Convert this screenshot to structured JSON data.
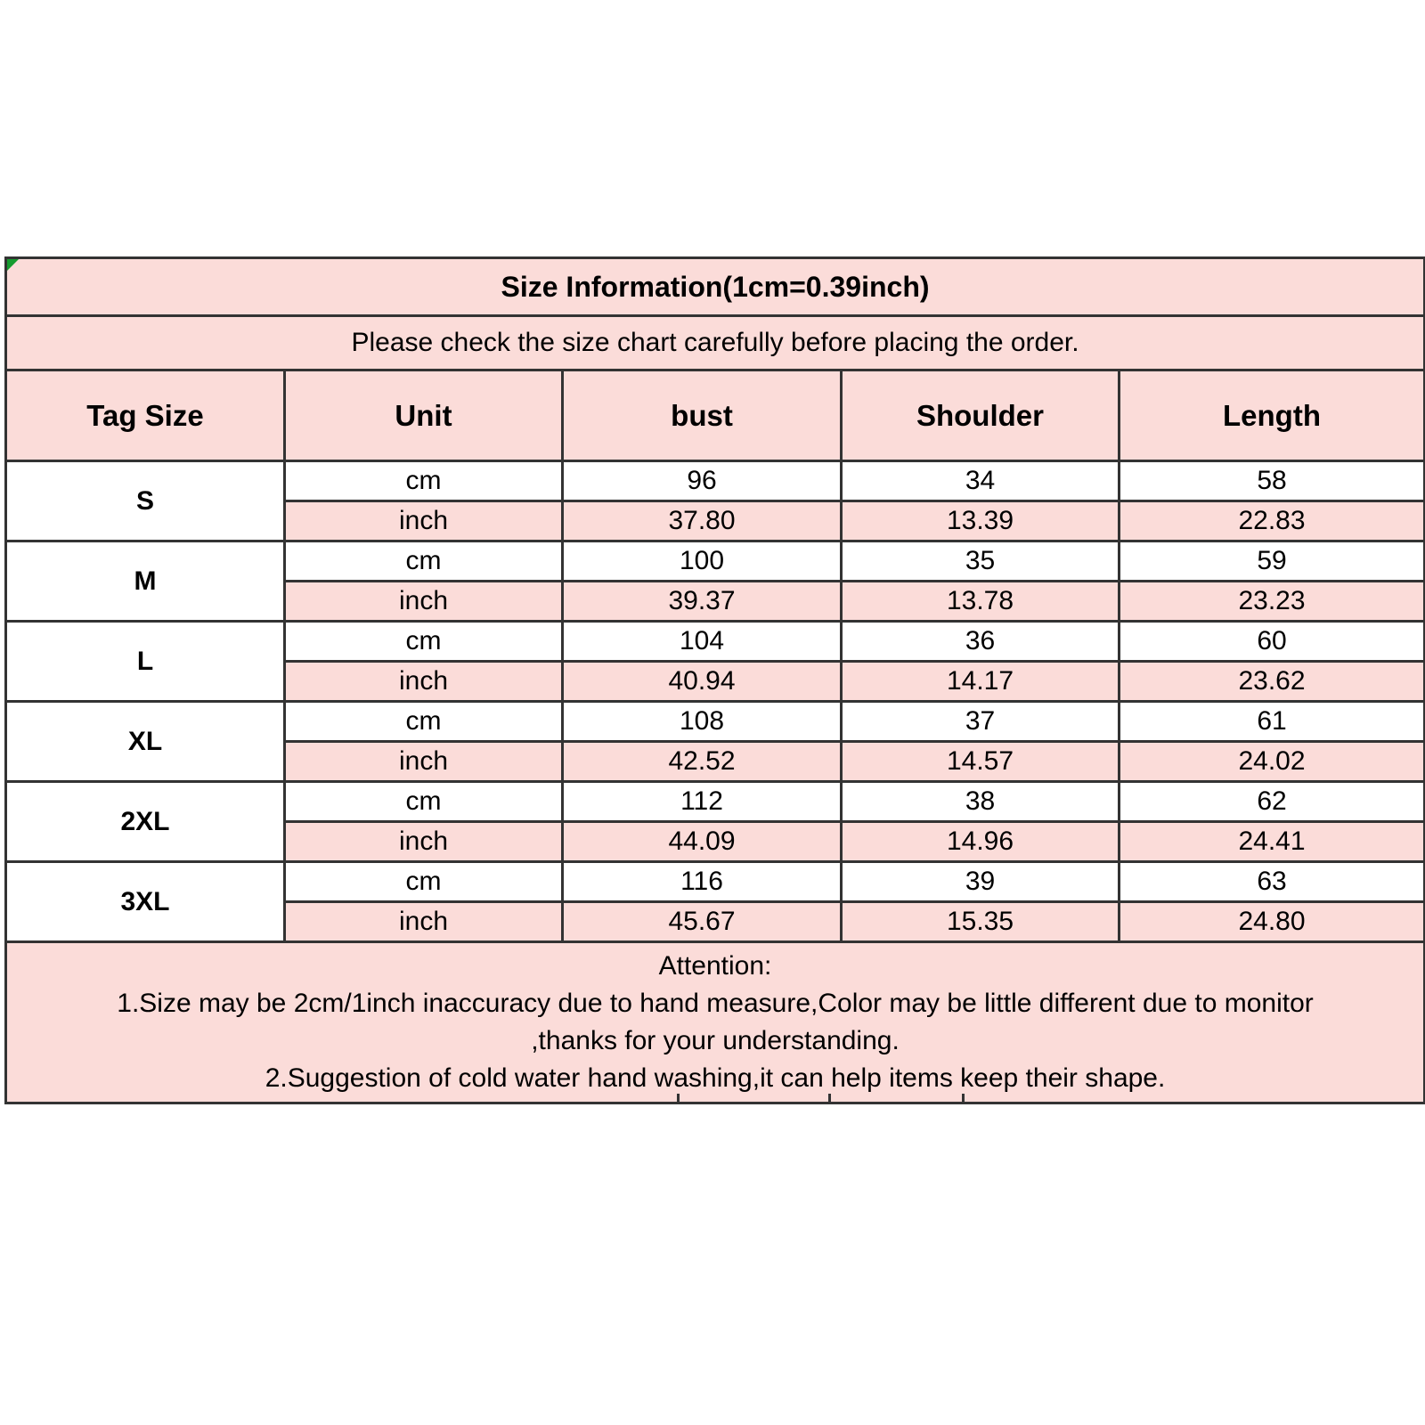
{
  "chart_data": {
    "type": "table",
    "title": "Size Information(1cm=0.39inch)",
    "subtitle": "Please check the size chart carefully before placing the order.",
    "columns": [
      "Tag Size",
      "Unit",
      "bust",
      "Shoulder",
      "Length"
    ],
    "unit_row_labels": [
      "cm",
      "inch"
    ],
    "rows": [
      {
        "tag_size": "S",
        "cm": [
          "96",
          "34",
          "58"
        ],
        "inch": [
          "37.80",
          "13.39",
          "22.83"
        ]
      },
      {
        "tag_size": "M",
        "cm": [
          "100",
          "35",
          "59"
        ],
        "inch": [
          "39.37",
          "13.78",
          "23.23"
        ]
      },
      {
        "tag_size": "L",
        "cm": [
          "104",
          "36",
          "60"
        ],
        "inch": [
          "40.94",
          "14.17",
          "23.62"
        ]
      },
      {
        "tag_size": "XL",
        "cm": [
          "108",
          "37",
          "61"
        ],
        "inch": [
          "42.52",
          "14.57",
          "24.02"
        ]
      },
      {
        "tag_size": "2XL",
        "cm": [
          "112",
          "38",
          "62"
        ],
        "inch": [
          "44.09",
          "14.96",
          "24.41"
        ]
      },
      {
        "tag_size": "3XL",
        "cm": [
          "116",
          "39",
          "63"
        ],
        "inch": [
          "45.67",
          "15.35",
          "24.80"
        ]
      }
    ],
    "attention": {
      "heading": "Attention:",
      "lines": [
        "1.Size may be 2cm/1inch inaccuracy due to hand measure,Color may be little different due to monitor",
        ",thanks for your understanding.",
        "2.Suggestion of cold water hand washing,it can help items keep their shape."
      ]
    },
    "layout_hints": {
      "stripe_pattern": "cm rows white, inch rows pink",
      "grid": "on"
    }
  },
  "colors": {
    "pink": "#fbdcd9",
    "white": "#ffffff",
    "border": "#333333",
    "corner_marker_green": "#169b2f",
    "text": "#000000"
  }
}
